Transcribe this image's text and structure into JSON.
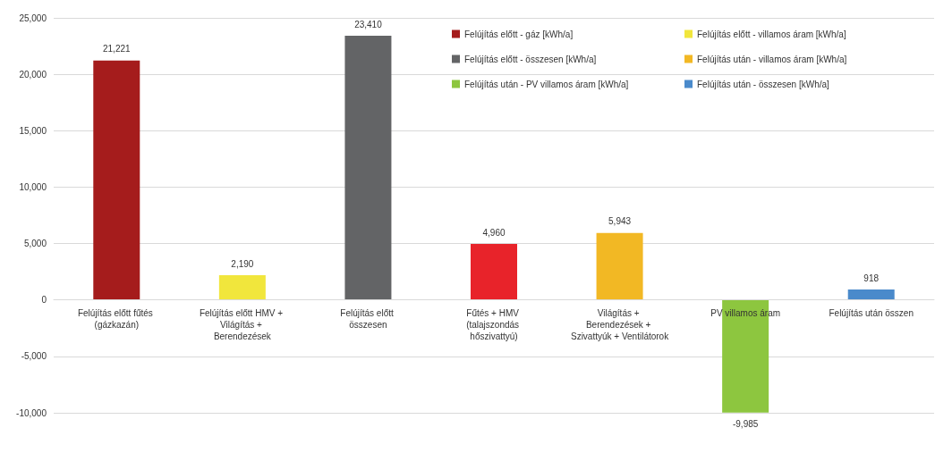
{
  "chart_data": {
    "type": "bar",
    "categories": [
      "Felújítás előtt fűtés (gázkazán)",
      "Felújítás előtt HMV + Világítás + Berendezések",
      "Felújítás előtt összesen",
      "Fűtés + HMV (talajszondás hőszivattyú)",
      "Világítás + Berendezések + Szivattyúk + Ventilátorok",
      "PV villamos áram",
      "Felújítás után összen"
    ],
    "series": [
      {
        "name": "Felújítás előtt - gáz [kWh/a]",
        "color": "#a51c1c",
        "values": [
          21221,
          null,
          null,
          null,
          null,
          null,
          null
        ],
        "value_labels": [
          "21,221",
          null,
          null,
          null,
          null,
          null,
          null
        ]
      },
      {
        "name": "Felújítás előtt - villamos áram [kWh/a]",
        "color": "#f1e63c",
        "values": [
          null,
          2190,
          null,
          null,
          null,
          null,
          null
        ],
        "value_labels": [
          null,
          "2,190",
          null,
          null,
          null,
          null,
          null
        ]
      },
      {
        "name": "Felújítás előtt - összesen [kWh/a]",
        "color": "#636466",
        "values": [
          null,
          null,
          23410,
          null,
          null,
          null,
          null
        ],
        "value_labels": [
          null,
          null,
          "23,410",
          null,
          null,
          null,
          null
        ]
      },
      {
        "color": "#e8232a",
        "values": [
          null,
          null,
          null,
          4960,
          null,
          null,
          null
        ],
        "value_labels": [
          null,
          null,
          null,
          "4,960",
          null,
          null,
          null
        ]
      },
      {
        "name": "Felújítás után - villamos áram [kWh/a]",
        "color": "#f2b824",
        "values": [
          null,
          null,
          null,
          null,
          5943,
          null,
          null
        ],
        "value_labels": [
          null,
          null,
          null,
          null,
          "5,943",
          null,
          null
        ]
      },
      {
        "name": "Felújítás után - PV villamos áram [kWh/a]",
        "color": "#8dc63f",
        "values": [
          null,
          null,
          null,
          null,
          null,
          -9985,
          null
        ],
        "value_labels": [
          null,
          null,
          null,
          null,
          null,
          "-9,985",
          null
        ]
      },
      {
        "name": "Felújítás után - összesen [kWh/a]",
        "color": "#4a8acb",
        "values": [
          null,
          null,
          null,
          null,
          null,
          null,
          918
        ],
        "value_labels": [
          null,
          null,
          null,
          null,
          null,
          null,
          "918"
        ]
      }
    ],
    "ylim": [
      -10000,
      25000
    ],
    "yticks": [
      {
        "value": -10000,
        "label": "-10,000"
      },
      {
        "value": -5000,
        "label": "-5,000"
      },
      0,
      {
        "value": 5000,
        "label": "5,000"
      },
      {
        "value": 10000,
        "label": "10,000"
      },
      {
        "value": 15000,
        "label": "15,000"
      },
      {
        "value": 20000,
        "label": "20,000"
      },
      {
        "value": 25000,
        "label": "25,000"
      }
    ],
    "grid": "y",
    "legend": "top right"
  }
}
